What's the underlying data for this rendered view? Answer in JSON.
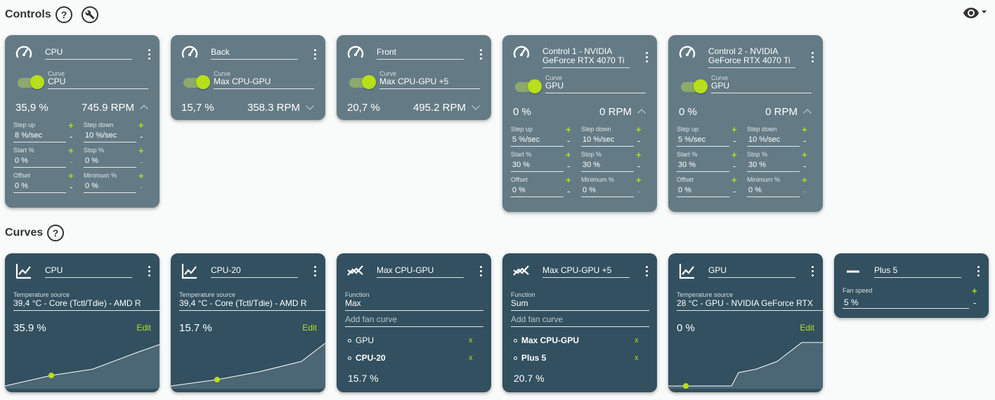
{
  "sections": {
    "controls_title": "Controls",
    "curves_title": "Curves",
    "help_glyph": "?"
  },
  "icons": {
    "help": "help-circle-icon",
    "settings": "wrench-icon",
    "visibility": "eye-icon",
    "speedometer": "gauge-icon",
    "linear": "chart-line-icon",
    "mix": "chart-mix-icon",
    "flat": "minus-icon"
  },
  "colors": {
    "accent": "#b7e01a",
    "control_card": "#647b85",
    "curve_card": "#32505f"
  },
  "controls": [
    {
      "name": "CPU",
      "curve_label": "Curve",
      "curve": "CPU",
      "percent": "35,9 %",
      "rpm": "745.9 RPM",
      "expanded": true,
      "params": {
        "step_up_label": "Step up",
        "step_up": "8 %/sec",
        "step_down_label": "Step down",
        "step_down": "10 %/sec",
        "start_label": "Start %",
        "start": "0 %",
        "stop_label": "Stop %",
        "stop": "0 %",
        "offset_label": "Offset",
        "offset": "0 %",
        "minimum_label": "Minimum %",
        "minimum": "0 %"
      }
    },
    {
      "name": "Back",
      "curve_label": "Curve",
      "curve": "Max CPU-GPU",
      "percent": "15,7 %",
      "rpm": "358.3 RPM",
      "expanded": false
    },
    {
      "name": "Front",
      "curve_label": "Curve",
      "curve": "Max CPU-GPU +5",
      "percent": "20,7 %",
      "rpm": "495.2 RPM",
      "expanded": false
    },
    {
      "name_line1": "Control 1 - NVIDIA",
      "name_line2": "GeForce RTX 4070 Ti",
      "curve_label": "Curve",
      "curve": "GPU",
      "percent": "0 %",
      "rpm": "0 RPM",
      "expanded": true,
      "params": {
        "step_up_label": "Step up",
        "step_up": "5 %/sec",
        "step_down_label": "Step down",
        "step_down": "10 %/sec",
        "start_label": "Start %",
        "start": "30 %",
        "stop_label": "Stop %",
        "stop": "30 %",
        "offset_label": "Offset",
        "offset": "0 %",
        "minimum_label": "Minimum %",
        "minimum": "0 %"
      }
    },
    {
      "name_line1": "Control 2 - NVIDIA",
      "name_line2": "GeForce RTX 4070 Ti",
      "curve_label": "Curve",
      "curve": "GPU",
      "percent": "0 %",
      "rpm": "0 RPM",
      "expanded": true,
      "params": {
        "step_up_label": "Step up",
        "step_up": "5 %/sec",
        "step_down_label": "Step down",
        "step_down": "10 %/sec",
        "start_label": "Start %",
        "start": "30 %",
        "stop_label": "Stop %",
        "stop": "30 %",
        "offset_label": "Offset",
        "offset": "0 %",
        "minimum_label": "Minimum %",
        "minimum": "0 %"
      }
    }
  ],
  "curves": [
    {
      "name": "CPU",
      "source_label": "Temperature source",
      "source": "39,4 °C - Core (Tctl/Tdie) - AMD R",
      "value": "35.9 %",
      "edit": "Edit"
    },
    {
      "name": "CPU-20",
      "source_label": "Temperature source",
      "source": "39,4 °C - Core (Tctl/Tdie) - AMD R",
      "value": "15.7 %",
      "edit": "Edit"
    },
    {
      "name": "Max CPU-GPU",
      "function_label": "Function",
      "function": "Max",
      "add_placeholder": "Add fan curve",
      "items": [
        {
          "name": "GPU",
          "bold": false
        },
        {
          "name": "CPU-20",
          "bold": true
        }
      ],
      "remove": "x",
      "value": "15.7 %"
    },
    {
      "name": "Max CPU-GPU +5",
      "function_label": "Function",
      "function": "Sum",
      "add_placeholder": "Add fan curve",
      "items": [
        {
          "name": "Max CPU-GPU",
          "bold": true
        },
        {
          "name": "Plus 5",
          "bold": true
        }
      ],
      "remove": "x",
      "value": "20.7 %"
    },
    {
      "name": "GPU",
      "source_label": "Temperature source",
      "source": "28 °C - GPU - NVIDIA GeForce RTX",
      "value": "0 %",
      "edit": "Edit"
    },
    {
      "name": "Plus 5",
      "speed_label": "Fan speed",
      "speed": "5 %"
    }
  ],
  "buttons": {
    "plus": "+",
    "minus": "-"
  }
}
